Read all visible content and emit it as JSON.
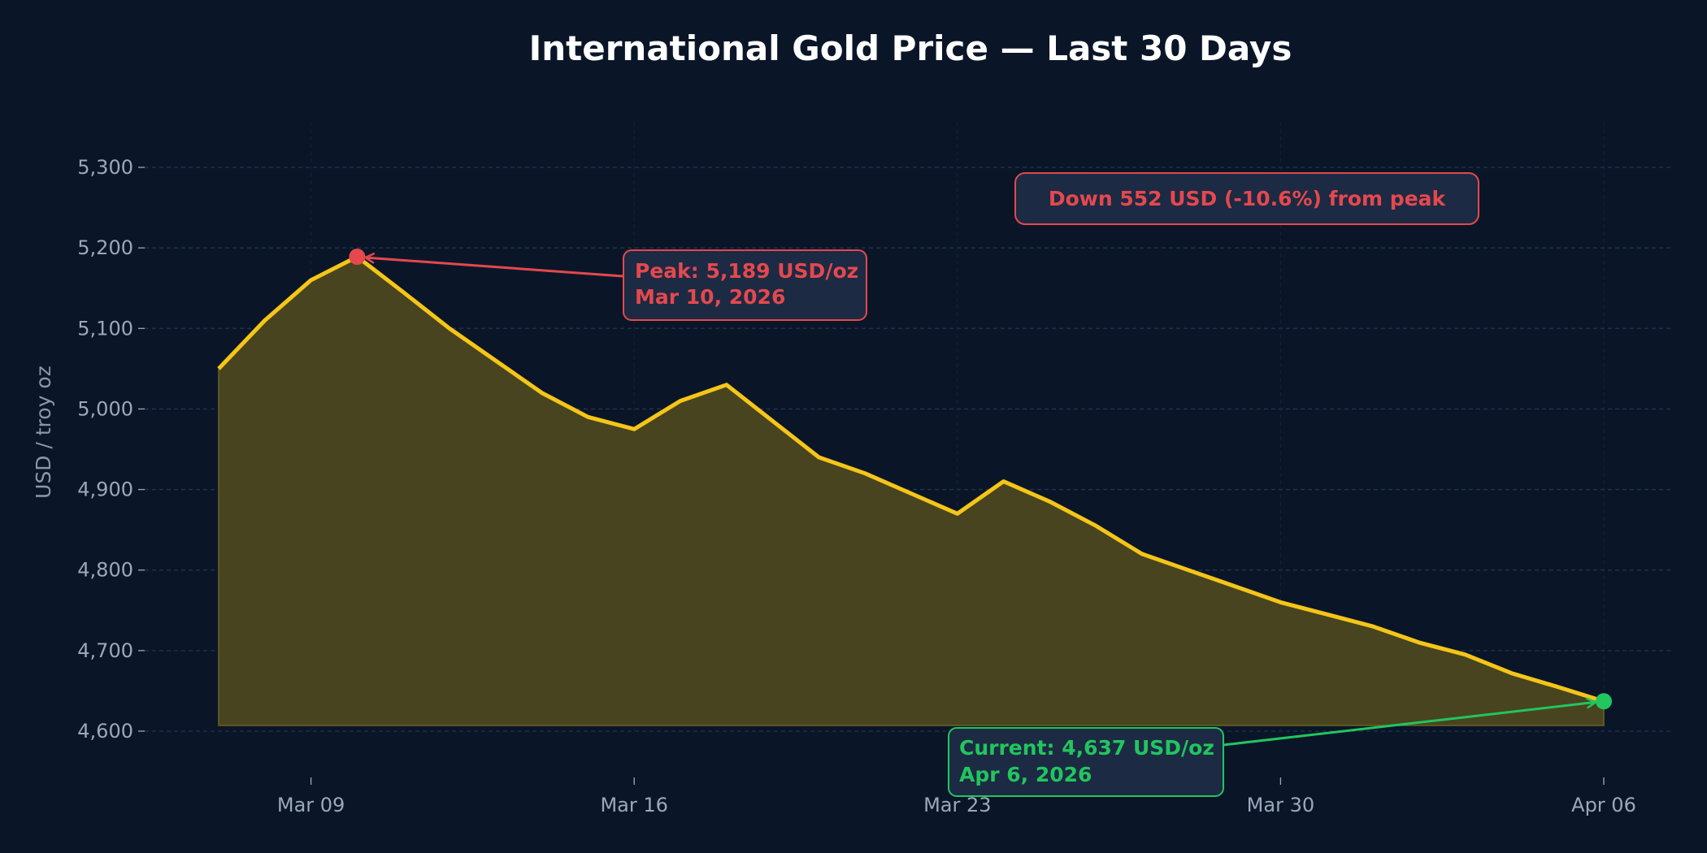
{
  "chart_data": {
    "type": "area",
    "title": "International Gold Price — Last 30 Days",
    "xlabel": "",
    "ylabel": "USD / troy oz",
    "x": [
      "2026-03-07",
      "2026-03-08",
      "2026-03-09",
      "2026-03-10",
      "2026-03-11",
      "2026-03-12",
      "2026-03-13",
      "2026-03-14",
      "2026-03-15",
      "2026-03-16",
      "2026-03-17",
      "2026-03-18",
      "2026-03-19",
      "2026-03-20",
      "2026-03-21",
      "2026-03-22",
      "2026-03-23",
      "2026-03-24",
      "2026-03-25",
      "2026-03-26",
      "2026-03-27",
      "2026-03-28",
      "2026-03-29",
      "2026-03-30",
      "2026-03-31",
      "2026-04-01",
      "2026-04-02",
      "2026-04-03",
      "2026-04-04",
      "2026-04-05",
      "2026-04-06"
    ],
    "values": [
      5050,
      5110,
      5160,
      5189,
      5145,
      5100,
      5060,
      5020,
      4990,
      4975,
      5010,
      5030,
      4985,
      4940,
      4920,
      4895,
      4870,
      4910,
      4885,
      4855,
      4820,
      4800,
      4780,
      4760,
      4745,
      4730,
      4710,
      4695,
      4672,
      4655,
      4637
    ],
    "fill_baseline": 4607,
    "ylim": [
      4535,
      5355
    ],
    "yticks": [
      4600,
      4700,
      4800,
      4900,
      5000,
      5100,
      5200,
      5300
    ],
    "ytick_labels": [
      "4,600",
      "4,700",
      "4,800",
      "4,900",
      "5,000",
      "5,100",
      "5,200",
      "5,300"
    ],
    "xticks": [
      "2026-03-09",
      "2026-03-16",
      "2026-03-23",
      "2026-03-30",
      "2026-04-06"
    ],
    "xtick_labels": [
      "Mar 09",
      "Mar 16",
      "Mar 23",
      "Mar 30",
      "Apr 06"
    ],
    "grid": "horizontal dashed",
    "colors": {
      "background": "#0a1628",
      "line": "#f5c518",
      "fill": "#f5c518",
      "grid": "#1f3553",
      "peak": "#e5484d",
      "current": "#22c55e",
      "box": "#1c2a44",
      "tick": "#9aa8bb"
    },
    "annotations": {
      "peak": {
        "line1": "Peak: 5,189 USD/oz",
        "line2": "Mar 10, 2026",
        "date": "2026-03-10",
        "value": 5189
      },
      "current": {
        "line1": "Current: 4,637 USD/oz",
        "line2": "Apr 6, 2026",
        "date": "2026-04-06",
        "value": 4637
      },
      "drop": {
        "text": "Down 552 USD  (-10.6%)  from peak"
      }
    }
  }
}
